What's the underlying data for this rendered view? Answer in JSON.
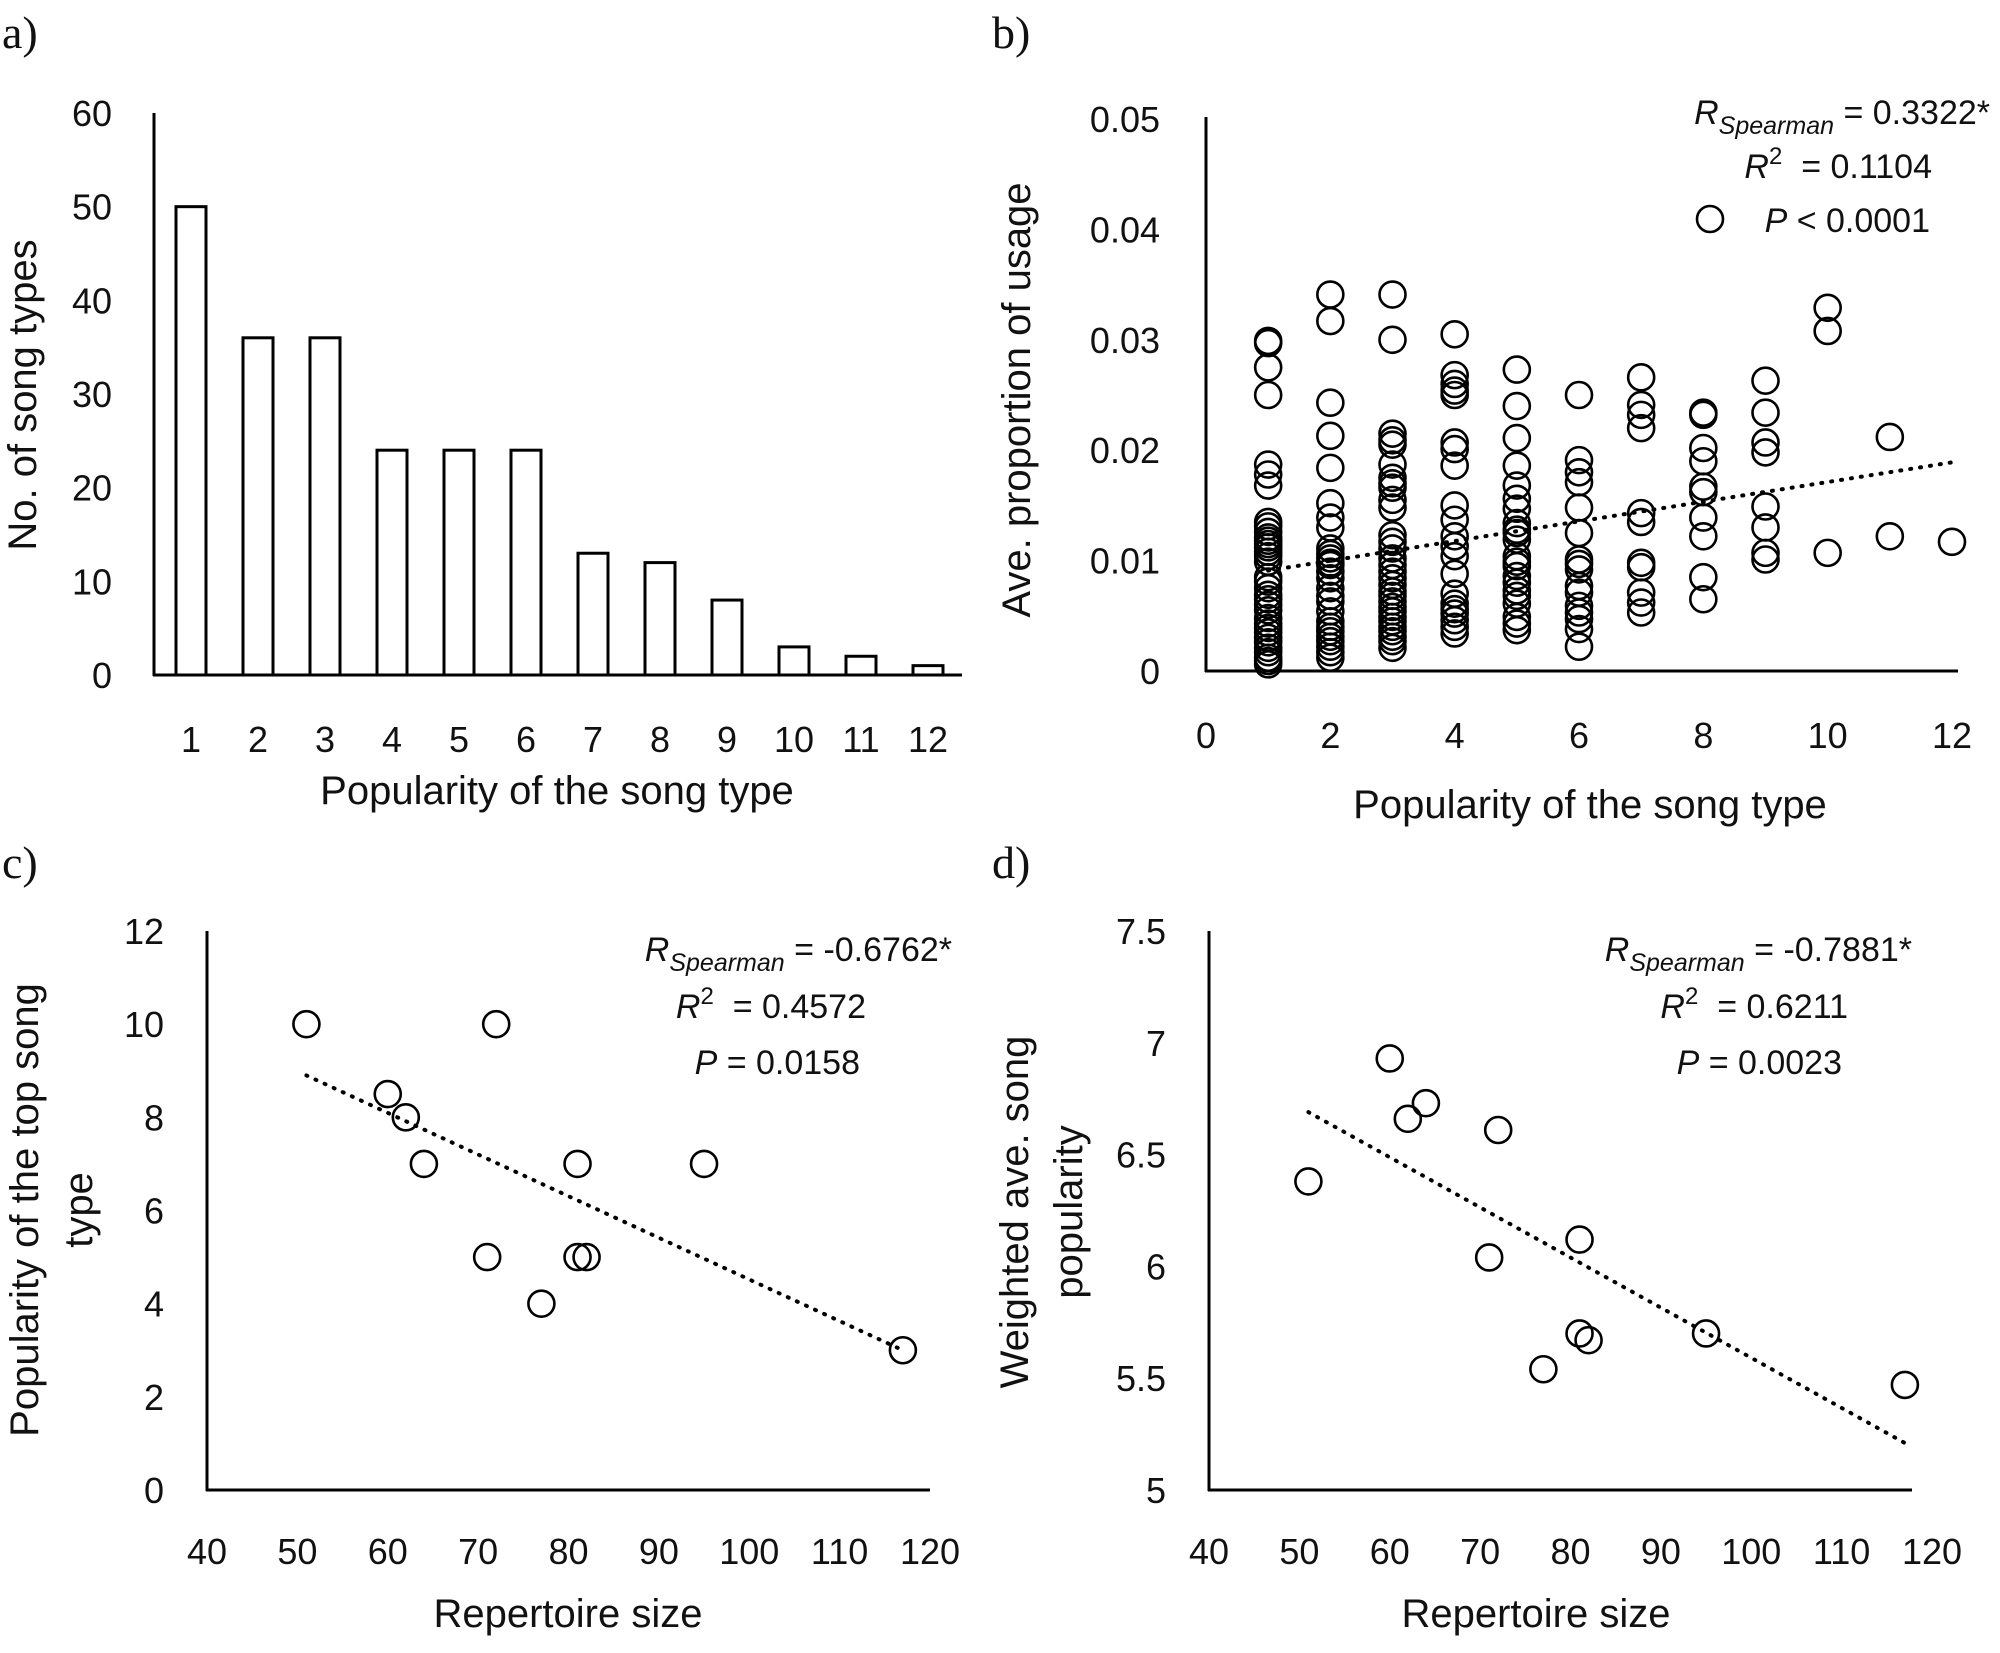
{
  "chart_data": [
    {
      "id": "a",
      "type": "bar",
      "panel_label": "a)",
      "title": "",
      "xlabel": "Popularity of the song type",
      "ylabel": "No. of song types",
      "categories": [
        "1",
        "2",
        "3",
        "4",
        "5",
        "6",
        "7",
        "8",
        "9",
        "10",
        "11",
        "12"
      ],
      "values": [
        50,
        36,
        36,
        24,
        24,
        24,
        13,
        12,
        8,
        3,
        2,
        1
      ],
      "ylim": [
        0,
        60
      ],
      "yticks": [
        "0",
        "10",
        "20",
        "30",
        "40",
        "50",
        "60"
      ],
      "grid": false,
      "legend": "none"
    },
    {
      "id": "b",
      "type": "scatter",
      "panel_label": "b)",
      "xlabel": "Popularity of the song type",
      "ylabel": "Ave. proportion of usage",
      "xlim": [
        0,
        12
      ],
      "ylim": [
        0,
        0.05
      ],
      "xticks": [
        "0",
        "2",
        "4",
        "6",
        "8",
        "10",
        "12"
      ],
      "yticks": [
        "0",
        "0.01",
        "0.02",
        "0.03",
        "0.04",
        "0.05"
      ],
      "grid": false,
      "legend": "top-right",
      "annotation": {
        "r_label": "R",
        "r_sub": "Spearman",
        "r_value": " = 0.3322*",
        "r2_label": "R",
        "r2_sup": "2",
        "r2_value": "  = 0.1104",
        "p_label": "P",
        "p_value": " < 0.0001"
      },
      "trendline": {
        "x": [
          1,
          12
        ],
        "y": [
          0.0091,
          0.0189
        ]
      },
      "series": [
        {
          "x": 1,
          "y": [
            0.0299,
            0.0297,
            0.0275,
            0.025,
            0.0187,
            0.0178,
            0.0168,
            0.0135,
            0.0131,
            0.0126,
            0.0121,
            0.0118,
            0.0115,
            0.0112,
            0.0108,
            0.0104,
            0.0099,
            0.0085,
            0.0081,
            0.0075,
            0.0069,
            0.0065,
            0.006,
            0.0055,
            0.0048,
            0.0043,
            0.0039,
            0.0035,
            0.003,
            0.0026,
            0.0021,
            0.0017,
            0.0012,
            0.0009,
            0.0006
          ]
        },
        {
          "x": 2,
          "y": [
            0.0341,
            0.0317,
            0.0243,
            0.0213,
            0.0184,
            0.0152,
            0.0139,
            0.013,
            0.0111,
            0.0106,
            0.0102,
            0.0098,
            0.0096,
            0.009,
            0.0084,
            0.0075,
            0.0068,
            0.0063,
            0.0054,
            0.0045,
            0.004,
            0.0036,
            0.0031,
            0.0027,
            0.0022,
            0.0017,
            0.0012
          ]
        },
        {
          "x": 3,
          "y": [
            0.0341,
            0.03,
            0.0215,
            0.0209,
            0.0205,
            0.0187,
            0.0175,
            0.017,
            0.0166,
            0.0155,
            0.0148,
            0.0123,
            0.0117,
            0.0111,
            0.0102,
            0.0096,
            0.009,
            0.0084,
            0.0078,
            0.0072,
            0.0068,
            0.0063,
            0.0058,
            0.0054,
            0.0049,
            0.0045,
            0.004,
            0.0036,
            0.0031,
            0.0027,
            0.0021
          ]
        },
        {
          "x": 4,
          "y": [
            0.0305,
            0.0268,
            0.026,
            0.0254,
            0.025,
            0.0207,
            0.0201,
            0.0186,
            0.015,
            0.0137,
            0.0122,
            0.0113,
            0.0104,
            0.0088,
            0.007,
            0.0061,
            0.0056,
            0.0052,
            0.0046,
            0.004,
            0.0034
          ]
        },
        {
          "x": 5,
          "y": [
            0.0273,
            0.024,
            0.0211,
            0.0186,
            0.0168,
            0.0156,
            0.0147,
            0.0134,
            0.0128,
            0.0125,
            0.0119,
            0.0104,
            0.0099,
            0.0095,
            0.0086,
            0.008,
            0.0073,
            0.0068,
            0.0061,
            0.0049,
            0.0043,
            0.0037
          ]
        },
        {
          "x": 6,
          "y": [
            0.025,
            0.0191,
            0.018,
            0.0171,
            0.0148,
            0.0125,
            0.0101,
            0.0097,
            0.0092,
            0.0077,
            0.0071,
            0.0059,
            0.0053,
            0.0047,
            0.0038,
            0.0022
          ]
        },
        {
          "x": 7,
          "y": [
            0.0266,
            0.0241,
            0.0232,
            0.022,
            0.0143,
            0.0135,
            0.0098,
            0.0094,
            0.0071,
            0.0062,
            0.0053
          ]
        },
        {
          "x": 8,
          "y": [
            0.0234,
            0.0232,
            0.0202,
            0.019,
            0.0167,
            0.0162,
            0.0139,
            0.0122,
            0.0085,
            0.0065
          ]
        },
        {
          "x": 9,
          "y": [
            0.0263,
            0.0234,
            0.0207,
            0.0198,
            0.0149,
            0.013,
            0.0107,
            0.0101
          ]
        },
        {
          "x": 10,
          "y": [
            0.0329,
            0.0308,
            0.0107
          ]
        },
        {
          "x": 11,
          "y": [
            0.0212,
            0.0122
          ]
        },
        {
          "x": 12,
          "y": [
            0.0117
          ]
        }
      ]
    },
    {
      "id": "c",
      "type": "scatter",
      "panel_label": "c)",
      "xlabel": "Repertoire size",
      "ylabel_line1": "Popularity of the top song",
      "ylabel_line2": "type",
      "xlim": [
        40,
        120
      ],
      "ylim": [
        0,
        12
      ],
      "xticks": [
        "40",
        "50",
        "60",
        "70",
        "80",
        "90",
        "100",
        "110",
        "120"
      ],
      "yticks": [
        "0",
        "2",
        "4",
        "6",
        "8",
        "10",
        "12"
      ],
      "grid": false,
      "legend": "none",
      "annotation": {
        "r_label": "R",
        "r_sub": "Spearman",
        "r_value": " = -0.6762*",
        "r2_label": "R",
        "r2_sup": "2",
        "r2_value": "  = 0.4572",
        "p_label": "P",
        "p_value": " = 0.0158"
      },
      "trendline": {
        "x": [
          51,
          117
        ],
        "y": [
          8.9,
          3.0
        ]
      },
      "points": [
        {
          "x": 51,
          "y": 10
        },
        {
          "x": 72,
          "y": 10
        },
        {
          "x": 60,
          "y": 8.5
        },
        {
          "x": 62,
          "y": 8
        },
        {
          "x": 64,
          "y": 7
        },
        {
          "x": 81,
          "y": 7
        },
        {
          "x": 95,
          "y": 7
        },
        {
          "x": 71,
          "y": 5
        },
        {
          "x": 81,
          "y": 5
        },
        {
          "x": 82,
          "y": 5
        },
        {
          "x": 77,
          "y": 4
        },
        {
          "x": 117,
          "y": 3
        }
      ]
    },
    {
      "id": "d",
      "type": "scatter",
      "panel_label": "d)",
      "xlabel": "Repertoire size",
      "ylabel_line1": "Weighted ave. song",
      "ylabel_line2": "popularity",
      "xlim": [
        40,
        120
      ],
      "ylim": [
        5,
        7.5
      ],
      "xticks": [
        "40",
        "50",
        "60",
        "70",
        "80",
        "90",
        "100",
        "110",
        "120"
      ],
      "yticks": [
        "5",
        "5.5",
        "6",
        "6.5",
        "7",
        "7.5"
      ],
      "grid": false,
      "legend": "none",
      "annotation": {
        "r_label": "R",
        "r_sub": "Spearman",
        "r_value": " = -0.7881*",
        "r2_label": "R",
        "r2_sup": "2",
        "r2_value": "  = 0.6211",
        "p_label": "P",
        "p_value": " = 0.0023"
      },
      "trendline": {
        "x": [
          51,
          117
        ],
        "y": [
          6.69,
          5.21
        ]
      },
      "points": [
        {
          "x": 60,
          "y": 6.93
        },
        {
          "x": 64,
          "y": 6.73
        },
        {
          "x": 62,
          "y": 6.66
        },
        {
          "x": 72,
          "y": 6.61
        },
        {
          "x": 51,
          "y": 6.38
        },
        {
          "x": 81,
          "y": 6.12
        },
        {
          "x": 71,
          "y": 6.04
        },
        {
          "x": 81,
          "y": 5.7
        },
        {
          "x": 82,
          "y": 5.67
        },
        {
          "x": 95,
          "y": 5.7
        },
        {
          "x": 77,
          "y": 5.54
        },
        {
          "x": 117,
          "y": 5.47
        }
      ]
    }
  ]
}
